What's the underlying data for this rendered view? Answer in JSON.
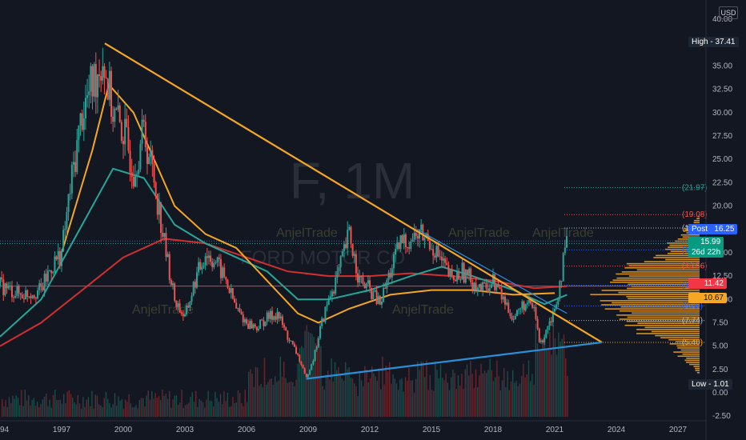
{
  "symbol": "F, 1M",
  "name_watermark": "FORD MOTOR CO",
  "author_watermarks": [
    "AnjelTrade",
    "AnjelTrade",
    "AnjelTrade",
    "AnjelTrade",
    "AnjelTrade"
  ],
  "currency": "USD",
  "colors": {
    "background": "#131722",
    "up": "#26a69a",
    "down": "#ef5350",
    "trendline_orange": "#f5a623",
    "trendline_blue": "#2a8fd9",
    "ma_orange": "#f5a623",
    "ma_teal": "#26a69a",
    "ma_red": "#d32f2f",
    "current_line": "#f23645",
    "volume_profile": "#f5a623"
  },
  "price_labels": {
    "high": {
      "label": "High",
      "value": "37.41"
    },
    "post": {
      "label": "Post",
      "value": "16.25"
    },
    "last": {
      "value": "15.99",
      "countdown": "26d 22h"
    },
    "red": {
      "value": "11.42"
    },
    "orange": {
      "value": "10.67"
    },
    "low": {
      "label": "Low",
      "value": "1.01"
    }
  },
  "level_labels": [
    "(21.97)",
    "(19.08)",
    "(17.64)",
    "(15.30)",
    "(13.56)",
    "(11.52)",
    "(9.30)",
    "(7.74)",
    "(5.40)"
  ],
  "chart_data": {
    "type": "candlestick",
    "title": "F, 1M",
    "ylim": [
      -2.5,
      40
    ],
    "yticks": [
      "40.00",
      "37.50",
      "35.00",
      "32.50",
      "30.00",
      "27.50",
      "25.00",
      "22.50",
      "20.00",
      "17.50",
      "15.00",
      "12.50",
      "10.00",
      "7.50",
      "5.00",
      "2.50",
      "0.00",
      "-2.50"
    ],
    "xticks": [
      "1994",
      "1997",
      "2000",
      "2003",
      "2006",
      "2009",
      "2012",
      "2015",
      "2018",
      "2021",
      "2024",
      "2027"
    ],
    "price_path": [
      [
        1994.0,
        11.5
      ],
      [
        1995.0,
        10.5
      ],
      [
        1996.0,
        11.0
      ],
      [
        1996.5,
        13.5
      ],
      [
        1997.0,
        15.0
      ],
      [
        1997.5,
        23
      ],
      [
        1998.0,
        30
      ],
      [
        1998.5,
        33
      ],
      [
        1999.0,
        36
      ],
      [
        1999.5,
        30
      ],
      [
        2000.0,
        28
      ],
      [
        2000.5,
        24
      ],
      [
        2001.0,
        28
      ],
      [
        2001.5,
        23
      ],
      [
        2002.0,
        16
      ],
      [
        2002.5,
        10
      ],
      [
        2003.0,
        8
      ],
      [
        2003.5,
        12
      ],
      [
        2004.0,
        15
      ],
      [
        2004.5,
        14
      ],
      [
        2005.0,
        12
      ],
      [
        2005.5,
        9
      ],
      [
        2006.0,
        7.5
      ],
      [
        2006.5,
        7
      ],
      [
        2007.0,
        8
      ],
      [
        2007.5,
        8.5
      ],
      [
        2008.0,
        6
      ],
      [
        2008.5,
        4
      ],
      [
        2008.9,
        1.5
      ],
      [
        2009.3,
        4
      ],
      [
        2009.6,
        7
      ],
      [
        2010.0,
        10
      ],
      [
        2010.5,
        13
      ],
      [
        2011.0,
        17
      ],
      [
        2011.5,
        12
      ],
      [
        2012.0,
        11
      ],
      [
        2012.5,
        9.5
      ],
      [
        2013.0,
        13
      ],
      [
        2013.5,
        16
      ],
      [
        2014.0,
        16.5
      ],
      [
        2014.5,
        17
      ],
      [
        2015.0,
        16
      ],
      [
        2015.5,
        14
      ],
      [
        2016.0,
        12
      ],
      [
        2016.5,
        13
      ],
      [
        2017.0,
        12
      ],
      [
        2017.5,
        11
      ],
      [
        2018.0,
        12
      ],
      [
        2018.5,
        10
      ],
      [
        2019.0,
        8
      ],
      [
        2019.5,
        9.5
      ],
      [
        2020.0,
        9
      ],
      [
        2020.3,
        5
      ],
      [
        2020.6,
        7
      ],
      [
        2021.0,
        9
      ],
      [
        2021.3,
        12.5
      ],
      [
        2021.6,
        15.99
      ]
    ],
    "moving_averages": {
      "ma_orange": [
        [
          1997.0,
          15
        ],
        [
          1998.5,
          26
        ],
        [
          1999.3,
          33
        ],
        [
          2000.5,
          30
        ],
        [
          2001.5,
          25
        ],
        [
          2002.5,
          20
        ],
        [
          2004,
          17
        ],
        [
          2005.5,
          15.5
        ],
        [
          2007,
          12
        ],
        [
          2008.5,
          8.5
        ],
        [
          2009.5,
          7.5
        ],
        [
          2011,
          9
        ],
        [
          2013,
          10.5
        ],
        [
          2015,
          11
        ],
        [
          2017,
          11
        ],
        [
          2019,
          10.5
        ],
        [
          2021,
          10.67
        ]
      ],
      "ma_teal": [
        [
          1994,
          6
        ],
        [
          1996,
          10
        ],
        [
          1998,
          18
        ],
        [
          1999.5,
          24
        ],
        [
          2001,
          23
        ],
        [
          2002.5,
          18
        ],
        [
          2004,
          16
        ],
        [
          2005.5,
          14.5
        ],
        [
          2007,
          13
        ],
        [
          2008.5,
          10
        ],
        [
          2010,
          10
        ],
        [
          2012,
          11
        ],
        [
          2014,
          12.5
        ],
        [
          2015.5,
          13.5
        ],
        [
          2017,
          12.5
        ],
        [
          2019,
          11
        ],
        [
          2020.5,
          9.5
        ],
        [
          2021.6,
          10.5
        ]
      ],
      "ma_red": [
        [
          1994,
          5
        ],
        [
          1996,
          7.5
        ],
        [
          1998,
          11
        ],
        [
          2000,
          14.5
        ],
        [
          2002,
          16.5
        ],
        [
          2004,
          16
        ],
        [
          2006,
          14.5
        ],
        [
          2008,
          13
        ],
        [
          2010,
          12.5
        ],
        [
          2012,
          12.5
        ],
        [
          2014,
          12.8
        ],
        [
          2016,
          12.5
        ],
        [
          2018,
          12
        ],
        [
          2020,
          11.2
        ],
        [
          2021.6,
          11.42
        ]
      ]
    },
    "trendlines": [
      {
        "color": "orange",
        "points": [
          [
            1999.1,
            37.41
          ],
          [
            2023.3,
            5.4
          ]
        ]
      },
      {
        "color": "blue",
        "points": [
          [
            2008.9,
            1.5
          ],
          [
            2023.3,
            5.4
          ]
        ]
      },
      {
        "color": "blue",
        "points": [
          [
            2014.3,
            17.5
          ],
          [
            2021.6,
            8.5
          ]
        ]
      }
    ],
    "volume_profile_note": "right-side horizontal histogram"
  }
}
